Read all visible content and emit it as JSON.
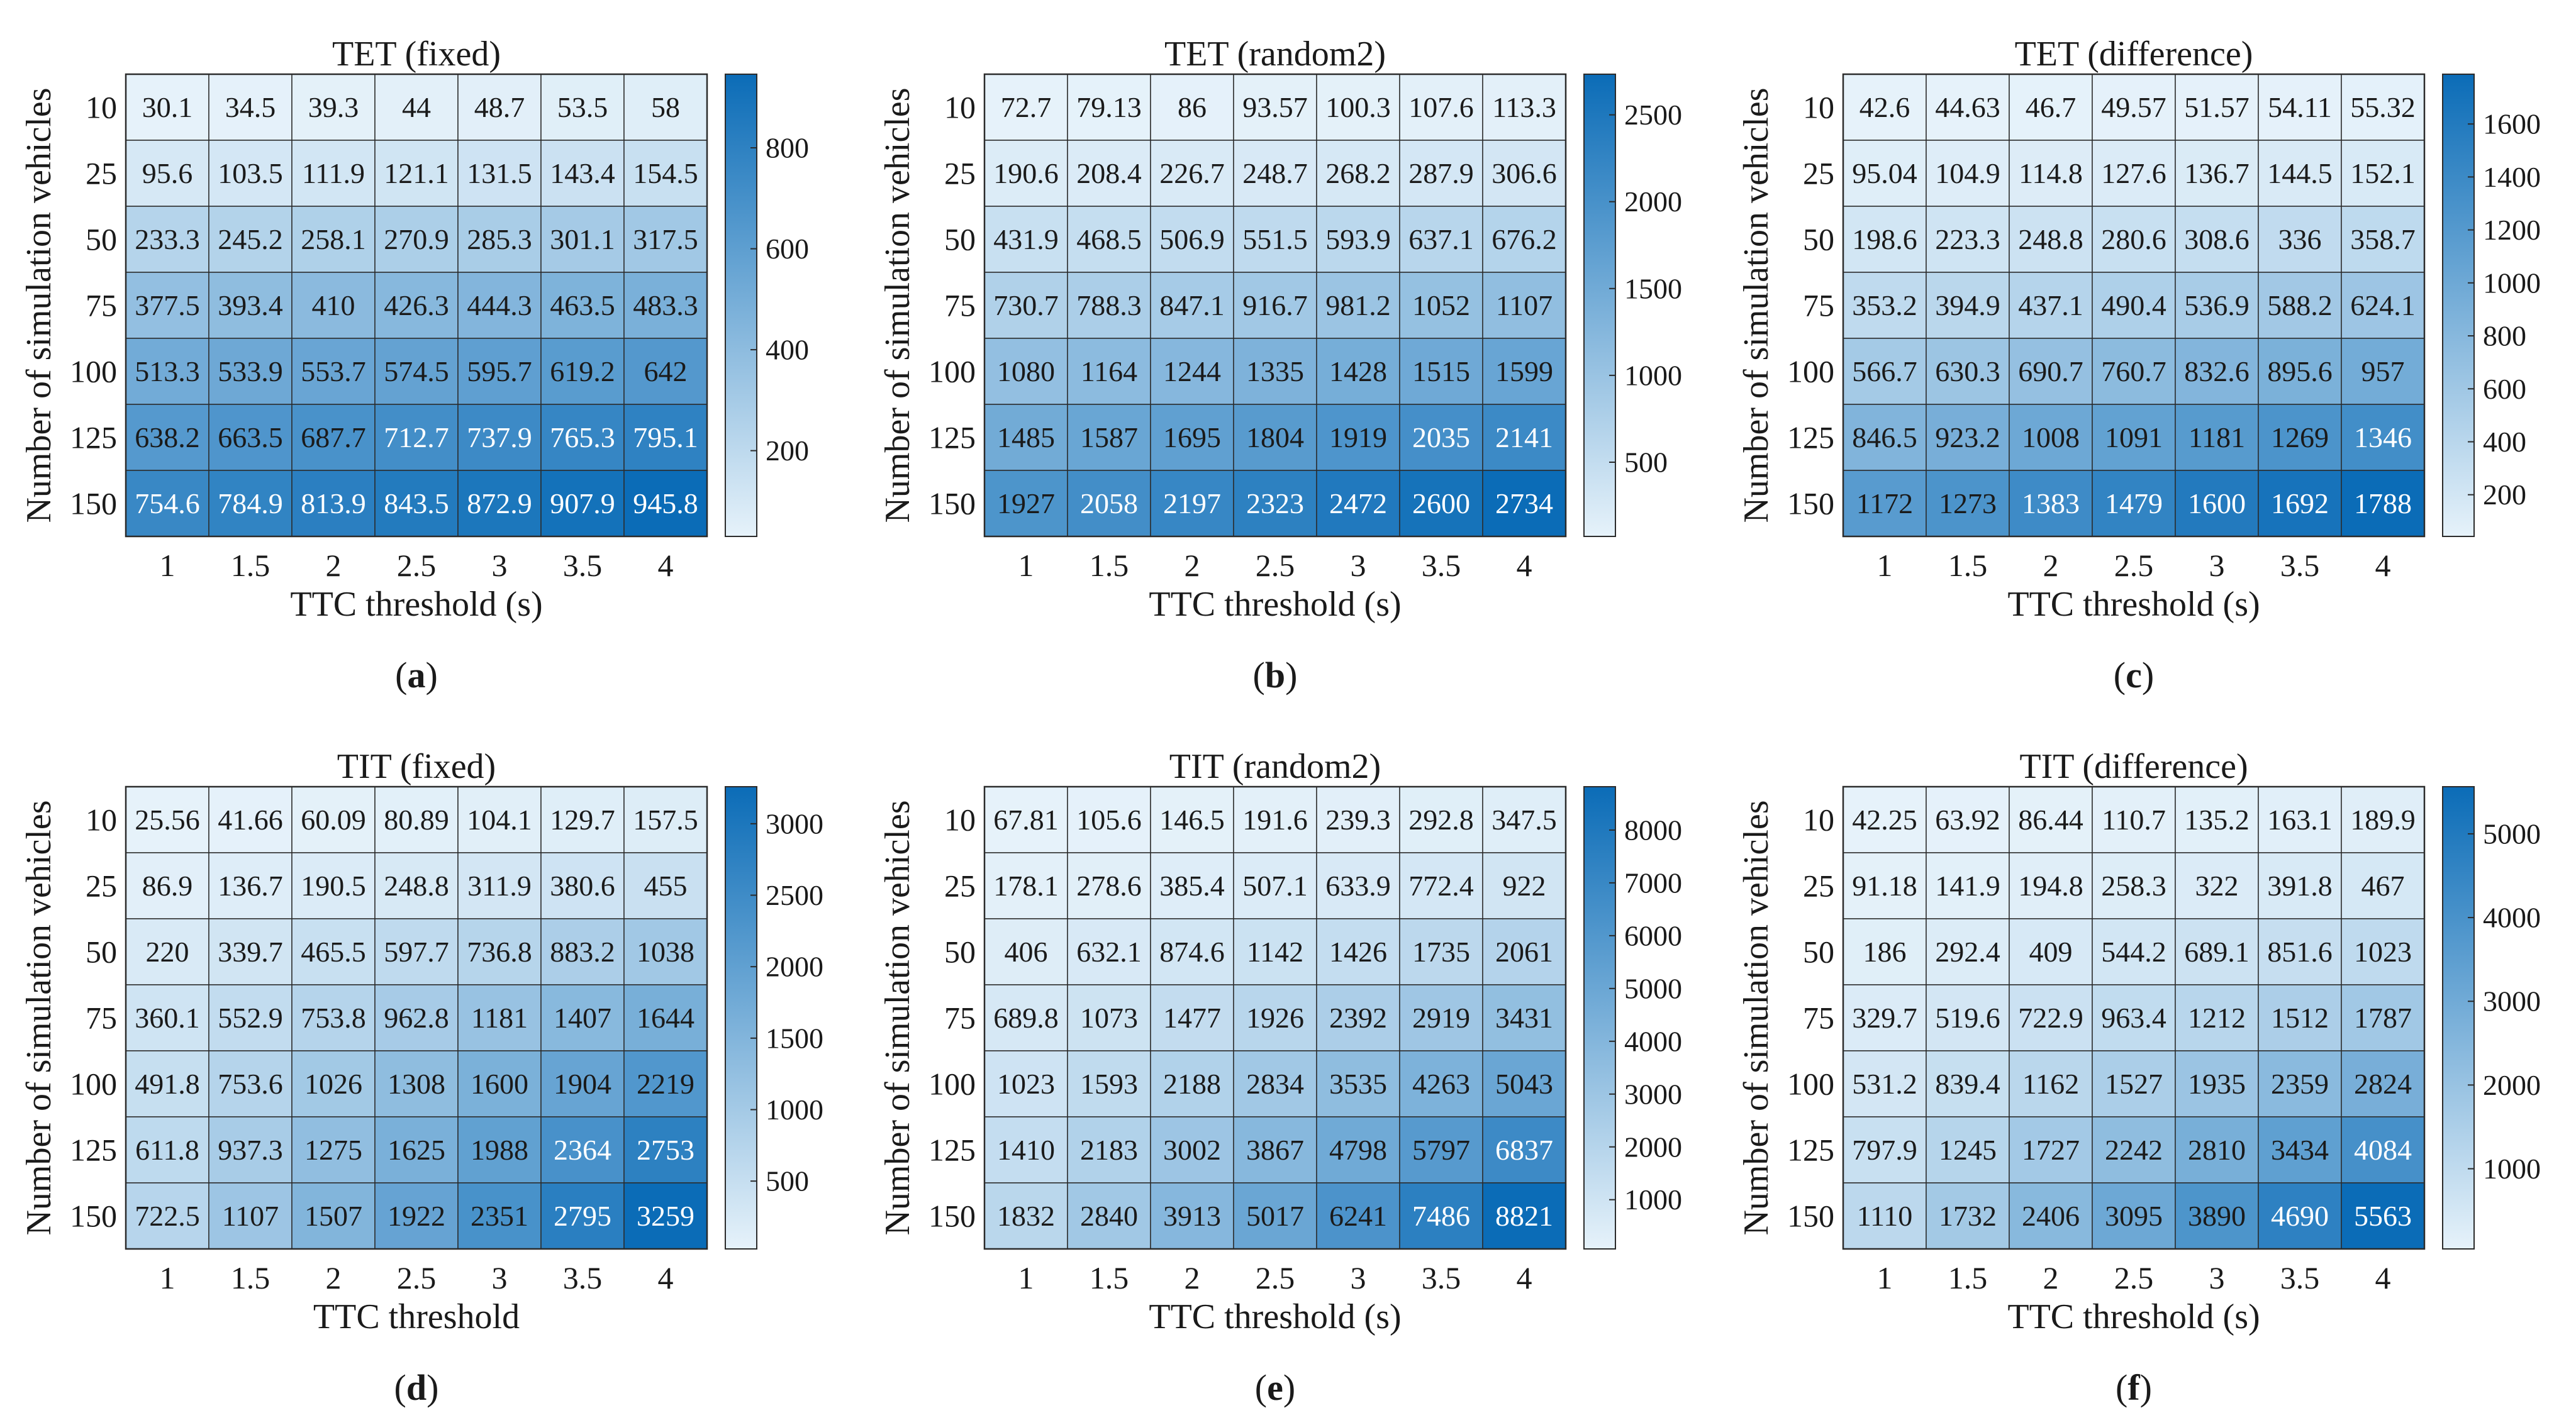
{
  "chart_data": [
    {
      "type": "heatmap",
      "panel_label": "a",
      "title": "TET (fixed)",
      "xlabel": "TTC threshold (s)",
      "ylabel": "Number of simulation vehicles",
      "x": [
        "1",
        "1.5",
        "2",
        "2.5",
        "3",
        "3.5",
        "4"
      ],
      "y": [
        "10",
        "25",
        "50",
        "75",
        "100",
        "125",
        "150"
      ],
      "values": [
        [
          "30.1",
          "34.5",
          "39.3",
          "44",
          "48.7",
          "53.5",
          "58"
        ],
        [
          "95.6",
          "103.5",
          "111.9",
          "121.1",
          "131.5",
          "143.4",
          "154.5"
        ],
        [
          "233.3",
          "245.2",
          "258.1",
          "270.9",
          "285.3",
          "301.1",
          "317.5"
        ],
        [
          "377.5",
          "393.4",
          "410",
          "426.3",
          "444.3",
          "463.5",
          "483.3"
        ],
        [
          "513.3",
          "533.9",
          "553.7",
          "574.5",
          "595.7",
          "619.2",
          "642"
        ],
        [
          "638.2",
          "663.5",
          "687.7",
          "712.7",
          "737.9",
          "765.3",
          "795.1"
        ],
        [
          "754.6",
          "784.9",
          "813.9",
          "843.5",
          "872.9",
          "907.9",
          "945.8"
        ]
      ],
      "colorbar": {
        "min": 30.1,
        "max": 945.8,
        "ticks": [
          "200",
          "400",
          "600",
          "800"
        ]
      }
    },
    {
      "type": "heatmap",
      "panel_label": "b",
      "title": "TET (random2)",
      "xlabel": "TTC threshold (s)",
      "ylabel": "Number of simulation vehicles",
      "x": [
        "1",
        "1.5",
        "2",
        "2.5",
        "3",
        "3.5",
        "4"
      ],
      "y": [
        "10",
        "25",
        "50",
        "75",
        "100",
        "125",
        "150"
      ],
      "values": [
        [
          "72.7",
          "79.13",
          "86",
          "93.57",
          "100.3",
          "107.6",
          "113.3"
        ],
        [
          "190.6",
          "208.4",
          "226.7",
          "248.7",
          "268.2",
          "287.9",
          "306.6"
        ],
        [
          "431.9",
          "468.5",
          "506.9",
          "551.5",
          "593.9",
          "637.1",
          "676.2"
        ],
        [
          "730.7",
          "788.3",
          "847.1",
          "916.7",
          "981.2",
          "1052",
          "1107"
        ],
        [
          "1080",
          "1164",
          "1244",
          "1335",
          "1428",
          "1515",
          "1599"
        ],
        [
          "1485",
          "1587",
          "1695",
          "1804",
          "1919",
          "2035",
          "2141"
        ],
        [
          "1927",
          "2058",
          "2197",
          "2323",
          "2472",
          "2600",
          "2734"
        ]
      ],
      "colorbar": {
        "min": 72.7,
        "max": 2734,
        "ticks": [
          "500",
          "1000",
          "1500",
          "2000",
          "2500"
        ]
      }
    },
    {
      "type": "heatmap",
      "panel_label": "c",
      "title": "TET (difference)",
      "xlabel": "TTC threshold (s)",
      "ylabel": "Number of simulation vehicles",
      "x": [
        "1",
        "1.5",
        "2",
        "2.5",
        "3",
        "3.5",
        "4"
      ],
      "y": [
        "10",
        "25",
        "50",
        "75",
        "100",
        "125",
        "150"
      ],
      "values": [
        [
          "42.6",
          "44.63",
          "46.7",
          "49.57",
          "51.57",
          "54.11",
          "55.32"
        ],
        [
          "95.04",
          "104.9",
          "114.8",
          "127.6",
          "136.7",
          "144.5",
          "152.1"
        ],
        [
          "198.6",
          "223.3",
          "248.8",
          "280.6",
          "308.6",
          "336",
          "358.7"
        ],
        [
          "353.2",
          "394.9",
          "437.1",
          "490.4",
          "536.9",
          "588.2",
          "624.1"
        ],
        [
          "566.7",
          "630.3",
          "690.7",
          "760.7",
          "832.6",
          "895.6",
          "957"
        ],
        [
          "846.5",
          "923.2",
          "1008",
          "1091",
          "1181",
          "1269",
          "1346"
        ],
        [
          "1172",
          "1273",
          "1383",
          "1479",
          "1600",
          "1692",
          "1788"
        ]
      ],
      "colorbar": {
        "min": 42.6,
        "max": 1788,
        "ticks": [
          "200",
          "400",
          "600",
          "800",
          "1000",
          "1200",
          "1400",
          "1600"
        ]
      }
    },
    {
      "type": "heatmap",
      "panel_label": "d",
      "title": "TIT (fixed)",
      "xlabel": "TTC threshold",
      "ylabel": "Number of simulation vehicles",
      "x": [
        "1",
        "1.5",
        "2",
        "2.5",
        "3",
        "3.5",
        "4"
      ],
      "y": [
        "10",
        "25",
        "50",
        "75",
        "100",
        "125",
        "150"
      ],
      "values": [
        [
          "25.56",
          "41.66",
          "60.09",
          "80.89",
          "104.1",
          "129.7",
          "157.5"
        ],
        [
          "86.9",
          "136.7",
          "190.5",
          "248.8",
          "311.9",
          "380.6",
          "455"
        ],
        [
          "220",
          "339.7",
          "465.5",
          "597.7",
          "736.8",
          "883.2",
          "1038"
        ],
        [
          "360.1",
          "552.9",
          "753.8",
          "962.8",
          "1181",
          "1407",
          "1644"
        ],
        [
          "491.8",
          "753.6",
          "1026",
          "1308",
          "1600",
          "1904",
          "2219"
        ],
        [
          "611.8",
          "937.3",
          "1275",
          "1625",
          "1988",
          "2364",
          "2753"
        ],
        [
          "722.5",
          "1107",
          "1507",
          "1922",
          "2351",
          "2795",
          "3259"
        ]
      ],
      "colorbar": {
        "min": 25.56,
        "max": 3259,
        "ticks": [
          "500",
          "1000",
          "1500",
          "2000",
          "2500",
          "3000"
        ]
      }
    },
    {
      "type": "heatmap",
      "panel_label": "e",
      "title": "TIT (random2)",
      "xlabel": "TTC threshold (s)",
      "ylabel": "Number of simulation vehicles",
      "x": [
        "1",
        "1.5",
        "2",
        "2.5",
        "3",
        "3.5",
        "4"
      ],
      "y": [
        "10",
        "25",
        "50",
        "75",
        "100",
        "125",
        "150"
      ],
      "values": [
        [
          "67.81",
          "105.6",
          "146.5",
          "191.6",
          "239.3",
          "292.8",
          "347.5"
        ],
        [
          "178.1",
          "278.6",
          "385.4",
          "507.1",
          "633.9",
          "772.4",
          "922"
        ],
        [
          "406",
          "632.1",
          "874.6",
          "1142",
          "1426",
          "1735",
          "2061"
        ],
        [
          "689.8",
          "1073",
          "1477",
          "1926",
          "2392",
          "2919",
          "3431"
        ],
        [
          "1023",
          "1593",
          "2188",
          "2834",
          "3535",
          "4263",
          "5043"
        ],
        [
          "1410",
          "2183",
          "3002",
          "3867",
          "4798",
          "5797",
          "6837"
        ],
        [
          "1832",
          "2840",
          "3913",
          "5017",
          "6241",
          "7486",
          "8821"
        ]
      ],
      "colorbar": {
        "min": 67.81,
        "max": 8821,
        "ticks": [
          "1000",
          "2000",
          "3000",
          "4000",
          "5000",
          "6000",
          "7000",
          "8000"
        ]
      }
    },
    {
      "type": "heatmap",
      "panel_label": "f",
      "title": "TIT (difference)",
      "xlabel": "TTC threshold (s)",
      "ylabel": "Number of simulation vehicles",
      "x": [
        "1",
        "1.5",
        "2",
        "2.5",
        "3",
        "3.5",
        "4"
      ],
      "y": [
        "10",
        "25",
        "50",
        "75",
        "100",
        "125",
        "150"
      ],
      "values": [
        [
          "42.25",
          "63.92",
          "86.44",
          "110.7",
          "135.2",
          "163.1",
          "189.9"
        ],
        [
          "91.18",
          "141.9",
          "194.8",
          "258.3",
          "322",
          "391.8",
          "467"
        ],
        [
          "186",
          "292.4",
          "409",
          "544.2",
          "689.1",
          "851.6",
          "1023"
        ],
        [
          "329.7",
          "519.6",
          "722.9",
          "963.4",
          "1212",
          "1512",
          "1787"
        ],
        [
          "531.2",
          "839.4",
          "1162",
          "1527",
          "1935",
          "2359",
          "2824"
        ],
        [
          "797.9",
          "1245",
          "1727",
          "2242",
          "2810",
          "3434",
          "4084"
        ],
        [
          "1110",
          "1732",
          "2406",
          "3095",
          "3890",
          "4690",
          "5563"
        ]
      ],
      "colorbar": {
        "min": 42.25,
        "max": 5563,
        "ticks": [
          "1000",
          "2000",
          "3000",
          "4000",
          "5000"
        ]
      }
    }
  ],
  "colors": {
    "low": "#e6f2fa",
    "high": "#0b6cb7",
    "text_dark": "#1a1a1a",
    "text_light": "#ffffff"
  }
}
